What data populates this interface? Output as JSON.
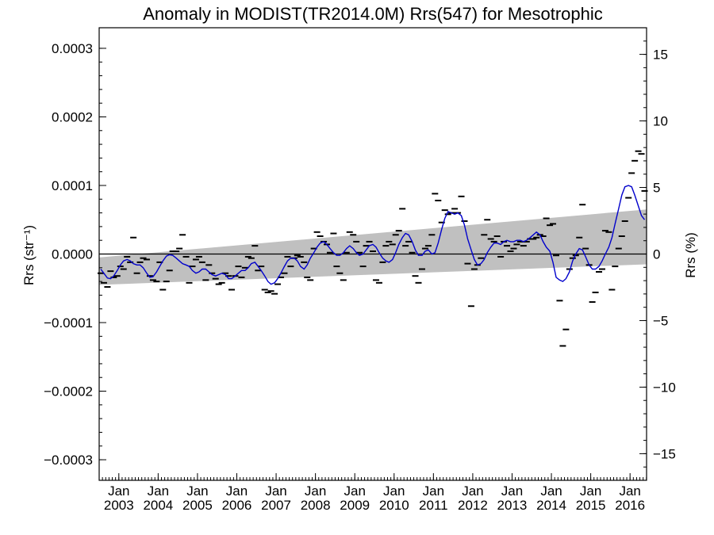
{
  "chart_data": {
    "type": "scatter",
    "title": "Anomaly in MODIST(TR2014.0M) Rrs(547) for Mesotrophic",
    "ylabel_left": "Rrs (str⁻¹)",
    "ylabel_right": "Rrs (%)",
    "xlim": [
      2002.5,
      2016.42
    ],
    "ylim_left": [
      -0.00033,
      0.00033
    ],
    "ylim_right": [
      -17,
      17
    ],
    "y_ticks_left": [
      {
        "v": 0.0003,
        "label": "0.0003"
      },
      {
        "v": 0.0002,
        "label": "0.0002"
      },
      {
        "v": 0.0001,
        "label": "0.0001"
      },
      {
        "v": 0.0,
        "label": "0.0000"
      },
      {
        "v": -0.0001,
        "label": "−0.0001"
      },
      {
        "v": -0.0002,
        "label": "−0.0002"
      },
      {
        "v": -0.0003,
        "label": "−0.0003"
      }
    ],
    "y_ticks_right": [
      {
        "v": 15,
        "label": "15"
      },
      {
        "v": 10,
        "label": "10"
      },
      {
        "v": 5,
        "label": "5"
      },
      {
        "v": 0,
        "label": "0"
      },
      {
        "v": -5,
        "label": "−5"
      },
      {
        "v": -10,
        "label": "−10"
      },
      {
        "v": -15,
        "label": "−15"
      }
    ],
    "x_ticks": [
      {
        "x": 2003.0,
        "month": "Jan",
        "year": "2003"
      },
      {
        "x": 2004.0,
        "month": "Jan",
        "year": "2004"
      },
      {
        "x": 2005.0,
        "month": "Jan",
        "year": "2005"
      },
      {
        "x": 2006.0,
        "month": "Jan",
        "year": "2006"
      },
      {
        "x": 2007.0,
        "month": "Jan",
        "year": "2007"
      },
      {
        "x": 2008.0,
        "month": "Jan",
        "year": "2008"
      },
      {
        "x": 2009.0,
        "month": "Jan",
        "year": "2009"
      },
      {
        "x": 2010.0,
        "month": "Jan",
        "year": "2010"
      },
      {
        "x": 2011.0,
        "month": "Jan",
        "year": "2011"
      },
      {
        "x": 2012.0,
        "month": "Jan",
        "year": "2012"
      },
      {
        "x": 2013.0,
        "month": "Jan",
        "year": "2013"
      },
      {
        "x": 2014.0,
        "month": "Jan",
        "year": "2014"
      },
      {
        "x": 2015.0,
        "month": "Jan",
        "year": "2015"
      },
      {
        "x": 2016.0,
        "month": "Jan",
        "year": "2016"
      }
    ],
    "zero_line": 0,
    "trend_band": {
      "x": [
        2002.5,
        2016.42
      ],
      "lower": [
        -4.5e-05,
        -1.5e-05
      ],
      "upper": [
        -5e-06,
        6.5e-05
      ]
    },
    "colors": {
      "band": "#c0c0c0",
      "smooth": "#0000cc",
      "points": "#000000",
      "axis": "#000000"
    },
    "monthly_anomaly": [
      [
        2002.54,
        -2.8e-05
      ],
      [
        2002.62,
        -4.2e-05
      ],
      [
        2002.71,
        -4.8e-05
      ],
      [
        2002.79,
        -2.5e-05
      ],
      [
        2002.87,
        -3.4e-05
      ],
      [
        2002.96,
        -3.2e-05
      ],
      [
        2003.04,
        -1.8e-05
      ],
      [
        2003.12,
        -2.2e-05
      ],
      [
        2003.21,
        -4e-06
      ],
      [
        2003.29,
        -1.2e-05
      ],
      [
        2003.37,
        2.4e-05
      ],
      [
        2003.46,
        -2.8e-05
      ],
      [
        2003.54,
        -1.2e-05
      ],
      [
        2003.62,
        -6e-06
      ],
      [
        2003.71,
        -8e-06
      ],
      [
        2003.79,
        -3.2e-05
      ],
      [
        2003.87,
        -3.8e-05
      ],
      [
        2003.96,
        -4e-05
      ],
      [
        2004.04,
        -1.2e-05
      ],
      [
        2004.12,
        -5.2e-05
      ],
      [
        2004.21,
        -4e-05
      ],
      [
        2004.29,
        -2.4e-05
      ],
      [
        2004.37,
        4e-06
      ],
      [
        2004.46,
        4e-06
      ],
      [
        2004.54,
        8e-06
      ],
      [
        2004.62,
        2.8e-05
      ],
      [
        2004.71,
        -4e-06
      ],
      [
        2004.79,
        -4.2e-05
      ],
      [
        2004.87,
        -1.8e-05
      ],
      [
        2004.96,
        -8e-06
      ],
      [
        2005.04,
        -4e-06
      ],
      [
        2005.12,
        -1.2e-05
      ],
      [
        2005.21,
        -3.8e-05
      ],
      [
        2005.29,
        -1.6e-05
      ],
      [
        2005.37,
        -2.8e-05
      ],
      [
        2005.46,
        -3.6e-05
      ],
      [
        2005.54,
        -4.4e-05
      ],
      [
        2005.62,
        -4.2e-05
      ],
      [
        2005.71,
        -2.8e-05
      ],
      [
        2005.79,
        -3.2e-05
      ],
      [
        2005.87,
        -5.2e-05
      ],
      [
        2005.96,
        -3.2e-05
      ],
      [
        2006.04,
        -1.8e-05
      ],
      [
        2006.12,
        -3.4e-05
      ],
      [
        2006.21,
        -2e-05
      ],
      [
        2006.29,
        -4e-06
      ],
      [
        2006.37,
        -6e-06
      ],
      [
        2006.46,
        1.2e-05
      ],
      [
        2006.54,
        -2.4e-05
      ],
      [
        2006.62,
        -1.8e-05
      ],
      [
        2006.71,
        -5.2e-05
      ],
      [
        2006.79,
        -5.6e-05
      ],
      [
        2006.87,
        -5.4e-05
      ],
      [
        2006.96,
        -5.8e-05
      ],
      [
        2007.04,
        -4.4e-05
      ],
      [
        2007.12,
        -3.4e-05
      ],
      [
        2007.21,
        -2.8e-05
      ],
      [
        2007.29,
        -4e-06
      ],
      [
        2007.37,
        -1.8e-05
      ],
      [
        2007.46,
        -6e-06
      ],
      [
        2007.54,
        -2e-06
      ],
      [
        2007.62,
        -4e-06
      ],
      [
        2007.71,
        -1.2e-05
      ],
      [
        2007.79,
        -3.4e-05
      ],
      [
        2007.87,
        -3.8e-05
      ],
      [
        2007.96,
        8e-06
      ],
      [
        2008.04,
        3.2e-05
      ],
      [
        2008.12,
        2.6e-05
      ],
      [
        2008.21,
        1.8e-05
      ],
      [
        2008.29,
        1.4e-05
      ],
      [
        2008.37,
        2e-06
      ],
      [
        2008.46,
        3e-05
      ],
      [
        2008.54,
        -1.8e-05
      ],
      [
        2008.62,
        -2.8e-05
      ],
      [
        2008.71,
        -3.8e-05
      ],
      [
        2008.79,
        2e-06
      ],
      [
        2008.87,
        3.2e-05
      ],
      [
        2008.96,
        2.8e-05
      ],
      [
        2009.04,
        1.8e-05
      ],
      [
        2009.12,
        2e-06
      ],
      [
        2009.21,
        -1.8e-05
      ],
      [
        2009.29,
        1.2e-05
      ],
      [
        2009.37,
        1.8e-05
      ],
      [
        2009.46,
        4e-06
      ],
      [
        2009.54,
        -3.8e-05
      ],
      [
        2009.62,
        -4.2e-05
      ],
      [
        2009.71,
        -1.2e-05
      ],
      [
        2009.79,
        1.2e-05
      ],
      [
        2009.87,
        1.8e-05
      ],
      [
        2009.96,
        1.4e-05
      ],
      [
        2010.04,
        2.8e-05
      ],
      [
        2010.12,
        3.4e-05
      ],
      [
        2010.21,
        6.6e-05
      ],
      [
        2010.29,
        1.2e-05
      ],
      [
        2010.37,
        1.8e-05
      ],
      [
        2010.46,
        2e-06
      ],
      [
        2010.54,
        -3.2e-05
      ],
      [
        2010.62,
        -4.2e-05
      ],
      [
        2010.71,
        -2.2e-05
      ],
      [
        2010.79,
        8e-06
      ],
      [
        2010.87,
        1.2e-05
      ],
      [
        2010.96,
        2.8e-05
      ],
      [
        2011.04,
        8.8e-05
      ],
      [
        2011.12,
        7.8e-05
      ],
      [
        2011.21,
        4.6e-05
      ],
      [
        2011.29,
        6.4e-05
      ],
      [
        2011.37,
        5.8e-05
      ],
      [
        2011.46,
        6e-05
      ],
      [
        2011.54,
        6.6e-05
      ],
      [
        2011.62,
        6e-05
      ],
      [
        2011.71,
        8.4e-05
      ],
      [
        2011.79,
        4.8e-05
      ],
      [
        2011.87,
        -1.4e-05
      ],
      [
        2011.96,
        -7.6e-05
      ],
      [
        2012.04,
        -2.2e-05
      ],
      [
        2012.12,
        -1.6e-05
      ],
      [
        2012.21,
        -6e-06
      ],
      [
        2012.29,
        2.8e-05
      ],
      [
        2012.37,
        5e-05
      ],
      [
        2012.46,
        2.2e-05
      ],
      [
        2012.54,
        1.8e-05
      ],
      [
        2012.62,
        2.6e-05
      ],
      [
        2012.71,
        -4e-06
      ],
      [
        2012.79,
        1.8e-05
      ],
      [
        2012.87,
        1.2e-05
      ],
      [
        2012.96,
        4e-06
      ],
      [
        2013.04,
        8e-06
      ],
      [
        2013.12,
        1.4e-05
      ],
      [
        2013.21,
        1.8e-05
      ],
      [
        2013.29,
        1.2e-05
      ],
      [
        2013.37,
        1.8e-05
      ],
      [
        2013.46,
        2.2e-05
      ],
      [
        2013.54,
        2.2e-05
      ],
      [
        2013.62,
        2.4e-05
      ],
      [
        2013.71,
        2.8e-05
      ],
      [
        2013.79,
        2.6e-05
      ],
      [
        2013.87,
        5.2e-05
      ],
      [
        2013.96,
        4.2e-05
      ],
      [
        2014.04,
        4.4e-05
      ],
      [
        2014.12,
        -2e-06
      ],
      [
        2014.21,
        -6.8e-05
      ],
      [
        2014.29,
        -0.000134
      ],
      [
        2014.37,
        -0.00011
      ],
      [
        2014.46,
        -2.2e-05
      ],
      [
        2014.54,
        -6e-06
      ],
      [
        2014.62,
        -2e-06
      ],
      [
        2014.71,
        2.4e-05
      ],
      [
        2014.79,
        7.2e-05
      ],
      [
        2014.87,
        8e-06
      ],
      [
        2014.96,
        -1.6e-05
      ],
      [
        2015.04,
        -7e-05
      ],
      [
        2015.12,
        -5.6e-05
      ],
      [
        2015.21,
        -2.6e-05
      ],
      [
        2015.29,
        -2.2e-05
      ],
      [
        2015.37,
        3.4e-05
      ],
      [
        2015.46,
        3.2e-05
      ],
      [
        2015.54,
        -5.2e-05
      ],
      [
        2015.62,
        -1.8e-05
      ],
      [
        2015.71,
        8e-06
      ],
      [
        2015.79,
        2.6e-05
      ],
      [
        2015.87,
        4.8e-05
      ],
      [
        2015.96,
        8.2e-05
      ],
      [
        2016.04,
        0.000118
      ],
      [
        2016.12,
        0.000136
      ],
      [
        2016.21,
        0.00015
      ],
      [
        2016.29,
        0.000146
      ],
      [
        2016.37,
        9.2e-05
      ]
    ],
    "smoothed": [
      [
        2002.54,
        -2.2e-05
      ],
      [
        2002.62,
        -2.8e-05
      ],
      [
        2002.71,
        -3.5e-05
      ],
      [
        2002.79,
        -3.6e-05
      ],
      [
        2002.87,
        -3.2e-05
      ],
      [
        2002.96,
        -2.4e-05
      ],
      [
        2003.04,
        -1.6e-05
      ],
      [
        2003.12,
        -1e-05
      ],
      [
        2003.21,
        -8e-06
      ],
      [
        2003.29,
        -1e-05
      ],
      [
        2003.37,
        -1.4e-05
      ],
      [
        2003.46,
        -1.6e-05
      ],
      [
        2003.54,
        -1.6e-05
      ],
      [
        2003.62,
        -2e-05
      ],
      [
        2003.71,
        -2.8e-05
      ],
      [
        2003.79,
        -3.4e-05
      ],
      [
        2003.87,
        -3.3e-05
      ],
      [
        2003.96,
        -2.6e-05
      ],
      [
        2004.04,
        -1.8e-05
      ],
      [
        2004.12,
        -1e-05
      ],
      [
        2004.21,
        -3e-06
      ],
      [
        2004.29,
        -1e-06
      ],
      [
        2004.37,
        -2e-06
      ],
      [
        2004.46,
        -6e-06
      ],
      [
        2004.54,
        -1e-05
      ],
      [
        2004.62,
        -1.4e-05
      ],
      [
        2004.71,
        -1.6e-05
      ],
      [
        2004.79,
        -1.8e-05
      ],
      [
        2004.87,
        -2.4e-05
      ],
      [
        2004.96,
        -2.8e-05
      ],
      [
        2005.04,
        -2.6e-05
      ],
      [
        2005.12,
        -2.2e-05
      ],
      [
        2005.21,
        -2.2e-05
      ],
      [
        2005.29,
        -2.6e-05
      ],
      [
        2005.37,
        -3e-05
      ],
      [
        2005.46,
        -3.2e-05
      ],
      [
        2005.54,
        -3e-05
      ],
      [
        2005.62,
        -2.8e-05
      ],
      [
        2005.71,
        -3e-05
      ],
      [
        2005.79,
        -3.6e-05
      ],
      [
        2005.87,
        -3.6e-05
      ],
      [
        2005.96,
        -3.2e-05
      ],
      [
        2006.04,
        -2.8e-05
      ],
      [
        2006.12,
        -2.4e-05
      ],
      [
        2006.21,
        -2.4e-05
      ],
      [
        2006.29,
        -2e-05
      ],
      [
        2006.37,
        -1.4e-05
      ],
      [
        2006.46,
        -1.2e-05
      ],
      [
        2006.54,
        -1.8e-05
      ],
      [
        2006.62,
        -2.4e-05
      ],
      [
        2006.71,
        -3.2e-05
      ],
      [
        2006.79,
        -4e-05
      ],
      [
        2006.87,
        -4.4e-05
      ],
      [
        2006.96,
        -4.2e-05
      ],
      [
        2007.04,
        -3.6e-05
      ],
      [
        2007.12,
        -2.8e-05
      ],
      [
        2007.21,
        -1.8e-05
      ],
      [
        2007.29,
        -1e-05
      ],
      [
        2007.37,
        -6e-06
      ],
      [
        2007.46,
        -6e-06
      ],
      [
        2007.54,
        -1e-05
      ],
      [
        2007.62,
        -1.8e-05
      ],
      [
        2007.71,
        -2.2e-05
      ],
      [
        2007.79,
        -1.6e-05
      ],
      [
        2007.87,
        -6e-06
      ],
      [
        2007.96,
        2e-06
      ],
      [
        2008.04,
        1e-05
      ],
      [
        2008.12,
        1.6e-05
      ],
      [
        2008.21,
        1.8e-05
      ],
      [
        2008.29,
        1.4e-05
      ],
      [
        2008.37,
        8e-06
      ],
      [
        2008.46,
        2e-06
      ],
      [
        2008.54,
        -2e-06
      ],
      [
        2008.62,
        -2e-06
      ],
      [
        2008.71,
        2e-06
      ],
      [
        2008.79,
        8e-06
      ],
      [
        2008.87,
        1.2e-05
      ],
      [
        2008.96,
        8e-06
      ],
      [
        2009.04,
        2e-06
      ],
      [
        2009.12,
        -2e-06
      ],
      [
        2009.21,
        0.0
      ],
      [
        2009.29,
        6e-06
      ],
      [
        2009.37,
        1.2e-05
      ],
      [
        2009.46,
        1.4e-05
      ],
      [
        2009.54,
        1e-05
      ],
      [
        2009.62,
        2e-06
      ],
      [
        2009.71,
        -6e-06
      ],
      [
        2009.79,
        -1e-05
      ],
      [
        2009.87,
        -1.2e-05
      ],
      [
        2009.96,
        -8e-06
      ],
      [
        2010.04,
        2e-06
      ],
      [
        2010.12,
        1.4e-05
      ],
      [
        2010.21,
        2.4e-05
      ],
      [
        2010.29,
        3e-05
      ],
      [
        2010.37,
        2.8e-05
      ],
      [
        2010.46,
        1.8e-05
      ],
      [
        2010.54,
        6e-06
      ],
      [
        2010.62,
        -2e-06
      ],
      [
        2010.71,
        -2e-06
      ],
      [
        2010.79,
        4e-06
      ],
      [
        2010.87,
        6e-06
      ],
      [
        2010.96,
        0.0
      ],
      [
        2011.04,
        2e-06
      ],
      [
        2011.12,
        1.6e-05
      ],
      [
        2011.21,
        3.6e-05
      ],
      [
        2011.29,
        5.2e-05
      ],
      [
        2011.37,
        6.2e-05
      ],
      [
        2011.46,
        6e-05
      ],
      [
        2011.54,
        5.8e-05
      ],
      [
        2011.62,
        6e-05
      ],
      [
        2011.71,
        5.6e-05
      ],
      [
        2011.79,
        4.2e-05
      ],
      [
        2011.87,
        2.2e-05
      ],
      [
        2011.96,
        6e-06
      ],
      [
        2012.04,
        -8e-06
      ],
      [
        2012.12,
        -1.6e-05
      ],
      [
        2012.21,
        -1.4e-05
      ],
      [
        2012.29,
        -8e-06
      ],
      [
        2012.37,
        2e-06
      ],
      [
        2012.46,
        1e-05
      ],
      [
        2012.54,
        1.6e-05
      ],
      [
        2012.62,
        1.6e-05
      ],
      [
        2012.71,
        1.4e-05
      ],
      [
        2012.79,
        1.8e-05
      ],
      [
        2012.87,
        2e-05
      ],
      [
        2012.96,
        1.8e-05
      ],
      [
        2013.04,
        1.8e-05
      ],
      [
        2013.12,
        2e-05
      ],
      [
        2013.21,
        2e-05
      ],
      [
        2013.29,
        1.8e-05
      ],
      [
        2013.37,
        2e-05
      ],
      [
        2013.46,
        2.4e-05
      ],
      [
        2013.54,
        2.8e-05
      ],
      [
        2013.62,
        3.2e-05
      ],
      [
        2013.71,
        2.8e-05
      ],
      [
        2013.79,
        1.8e-05
      ],
      [
        2013.87,
        1e-05
      ],
      [
        2013.96,
        4e-06
      ],
      [
        2014.04,
        -1.2e-05
      ],
      [
        2014.12,
        -3.4e-05
      ],
      [
        2014.21,
        -3.8e-05
      ],
      [
        2014.29,
        -4e-05
      ],
      [
        2014.37,
        -3.6e-05
      ],
      [
        2014.46,
        -2.6e-05
      ],
      [
        2014.54,
        -1e-05
      ],
      [
        2014.62,
        0.0
      ],
      [
        2014.71,
        8e-06
      ],
      [
        2014.79,
        6e-06
      ],
      [
        2014.87,
        -4e-06
      ],
      [
        2014.96,
        -1.6e-05
      ],
      [
        2015.04,
        -2.2e-05
      ],
      [
        2015.12,
        -2.2e-05
      ],
      [
        2015.21,
        -1.8e-05
      ],
      [
        2015.29,
        -1e-05
      ],
      [
        2015.37,
        0.0
      ],
      [
        2015.46,
        1e-05
      ],
      [
        2015.54,
        2.4e-05
      ],
      [
        2015.62,
        4.4e-05
      ],
      [
        2015.71,
        6.6e-05
      ],
      [
        2015.79,
        8.6e-05
      ],
      [
        2015.87,
        9.8e-05
      ],
      [
        2015.96,
        0.0001
      ],
      [
        2016.04,
        9.8e-05
      ],
      [
        2016.12,
        8.6e-05
      ],
      [
        2016.21,
        7e-05
      ],
      [
        2016.29,
        5.6e-05
      ],
      [
        2016.37,
        5e-05
      ]
    ]
  }
}
